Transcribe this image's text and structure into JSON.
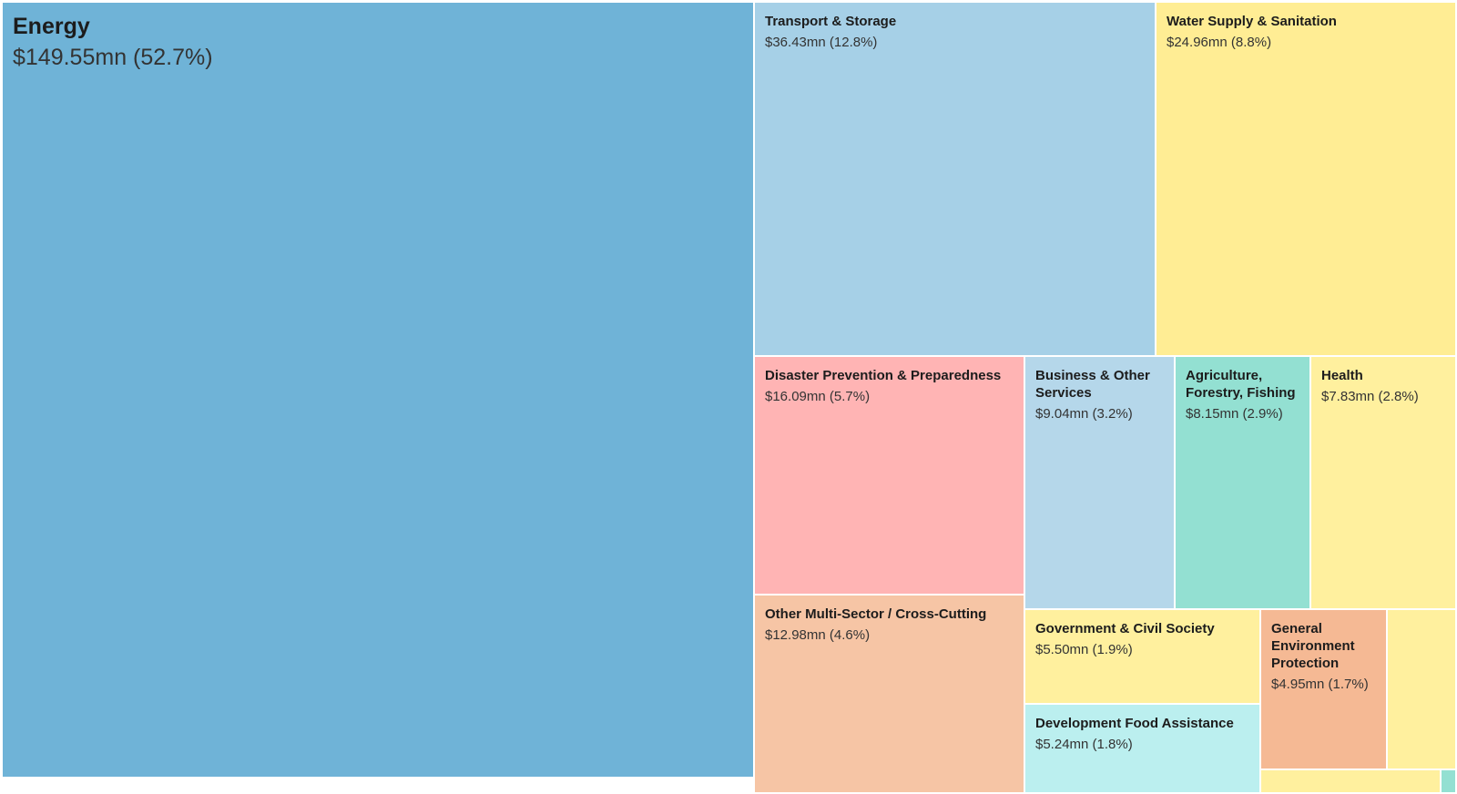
{
  "chart_data": {
    "type": "treemap",
    "items": [
      {
        "name": "Energy",
        "value": 149.55,
        "label_value": "$149.55mn (52.7%)",
        "color": "#6fb3d7"
      },
      {
        "name": "Transport & Storage",
        "value": 36.43,
        "label_value": "$36.43mn (12.8%)",
        "color": "#a6d0e7"
      },
      {
        "name": "Water Supply & Sanitation",
        "value": 24.96,
        "label_value": "$24.96mn (8.8%)",
        "color": "#ffed94"
      },
      {
        "name": "Disaster Prevention & Preparedness",
        "value": 16.09,
        "label_value": "$16.09mn (5.7%)",
        "color": "#ffb4b4"
      },
      {
        "name": "Other Multi-Sector / Cross-Cutting",
        "value": 12.98,
        "label_value": "$12.98mn (4.6%)",
        "color": "#f6c5a5"
      },
      {
        "name": "Business & Other Services",
        "value": 9.04,
        "label_value": "$9.04mn (3.2%)",
        "color": "#b5d7ea"
      },
      {
        "name": "Agriculture, Forestry, Fishing",
        "value": 8.15,
        "label_value": "$8.15mn (2.9%)",
        "color": "#93e0d2"
      },
      {
        "name": "Health",
        "value": 7.83,
        "label_value": "$7.83mn (2.8%)",
        "color": "#fff09e"
      },
      {
        "name": "Government & Civil Society",
        "value": 5.5,
        "label_value": "$5.50mn (1.9%)",
        "color": "#fff09e"
      },
      {
        "name": "Development Food Assistance",
        "value": 5.24,
        "label_value": "$5.24mn (1.8%)",
        "color": "#bbefef"
      },
      {
        "name": "General Environment Protection",
        "value": 4.95,
        "label_value": "$4.95mn (1.7%)",
        "color": "#f5b994"
      },
      {
        "name": "",
        "value": null,
        "label_value": "",
        "color": "#fff09e"
      },
      {
        "name": "",
        "value": null,
        "label_value": "",
        "color": "#fff09e"
      },
      {
        "name": "",
        "value": null,
        "label_value": "",
        "color": "#93e0d2"
      }
    ]
  }
}
